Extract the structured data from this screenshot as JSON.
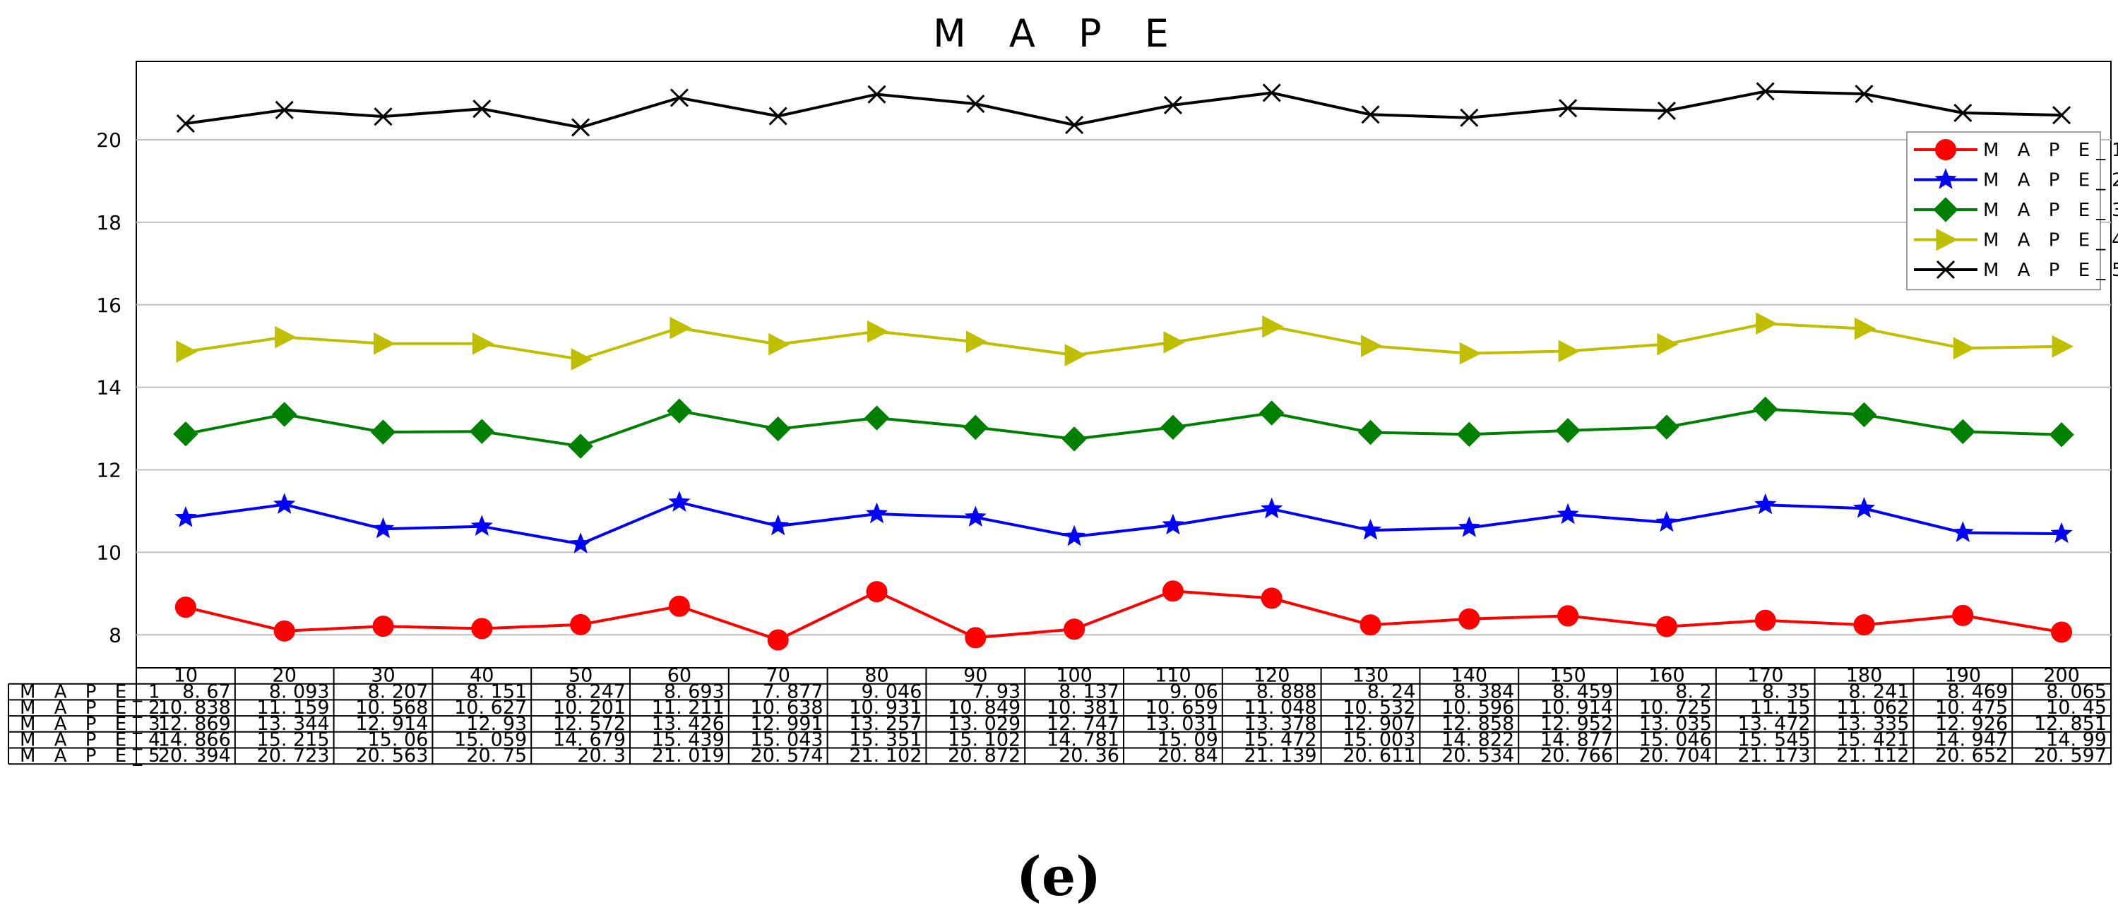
{
  "chart_data": {
    "type": "line",
    "title": "M A P E",
    "caption": "(e)",
    "xlabel": "",
    "ylabel": "",
    "categories": [
      "10",
      "20",
      "30",
      "40",
      "50",
      "60",
      "70",
      "80",
      "90",
      "100",
      "110",
      "120",
      "130",
      "140",
      "150",
      "160",
      "170",
      "180",
      "190",
      "200"
    ],
    "ylim": [
      7.2,
      21.9
    ],
    "yticks": [
      8,
      10,
      12,
      14,
      16,
      18,
      20
    ],
    "grid": true,
    "legend_position": "top-right",
    "series": [
      {
        "name": "M A P E_1",
        "color": "#ff0000",
        "marker": "circle",
        "values": [
          8.67,
          8.093,
          8.207,
          8.151,
          8.247,
          8.693,
          7.877,
          9.046,
          7.93,
          8.137,
          9.06,
          8.888,
          8.24,
          8.384,
          8.459,
          8.2,
          8.35,
          8.241,
          8.469,
          8.065
        ],
        "labels": [
          "8. 67",
          "8. 093",
          "8. 207",
          "8. 151",
          "8. 247",
          "8. 693",
          "7. 877",
          "9. 046",
          "7. 93",
          "8. 137",
          "9. 06",
          "8. 888",
          "8. 24",
          "8. 384",
          "8. 459",
          "8. 2",
          "8. 35",
          "8. 241",
          "8. 469",
          "8. 065"
        ]
      },
      {
        "name": "M A P E_2",
        "color": "#0000ff",
        "marker": "star",
        "values": [
          10.838,
          11.159,
          10.568,
          10.627,
          10.201,
          11.211,
          10.638,
          10.931,
          10.849,
          10.381,
          10.659,
          11.048,
          10.532,
          10.596,
          10.914,
          10.725,
          11.15,
          11.062,
          10.475,
          10.45
        ],
        "labels": [
          "10. 838",
          "11. 159",
          "10. 568",
          "10. 627",
          "10. 201",
          "11. 211",
          "10. 638",
          "10. 931",
          "10. 849",
          "10. 381",
          "10. 659",
          "11. 048",
          "10. 532",
          "10. 596",
          "10. 914",
          "10. 725",
          "11. 15",
          "11. 062",
          "10. 475",
          "10. 45"
        ]
      },
      {
        "name": "M A P E_3",
        "color": "#008000",
        "marker": "diamond",
        "values": [
          12.869,
          13.344,
          12.914,
          12.93,
          12.572,
          13.426,
          12.991,
          13.257,
          13.029,
          12.747,
          13.031,
          13.378,
          12.907,
          12.858,
          12.952,
          13.035,
          13.472,
          13.335,
          12.926,
          12.851
        ],
        "labels": [
          "12. 869",
          "13. 344",
          "12. 914",
          "12. 93",
          "12. 572",
          "13. 426",
          "12. 991",
          "13. 257",
          "13. 029",
          "12. 747",
          "13. 031",
          "13. 378",
          "12. 907",
          "12. 858",
          "12. 952",
          "13. 035",
          "13. 472",
          "13. 335",
          "12. 926",
          "12. 851"
        ]
      },
      {
        "name": "M A P E_4",
        "color": "#bfbf00",
        "marker": "triangle-right",
        "values": [
          14.866,
          15.215,
          15.06,
          15.059,
          14.679,
          15.439,
          15.043,
          15.351,
          15.102,
          14.781,
          15.09,
          15.472,
          15.003,
          14.822,
          14.877,
          15.046,
          15.545,
          15.421,
          14.947,
          14.99
        ],
        "labels": [
          "14. 866",
          "15. 215",
          "15. 06",
          "15. 059",
          "14. 679",
          "15. 439",
          "15. 043",
          "15. 351",
          "15. 102",
          "14. 781",
          "15. 09",
          "15. 472",
          "15. 003",
          "14. 822",
          "14. 877",
          "15. 046",
          "15. 545",
          "15. 421",
          "14. 947",
          "14. 99"
        ]
      },
      {
        "name": "M A P E_5",
        "color": "#000000",
        "marker": "x",
        "values": [
          20.394,
          20.723,
          20.563,
          20.75,
          20.3,
          21.019,
          20.574,
          21.102,
          20.872,
          20.36,
          20.84,
          21.139,
          20.611,
          20.534,
          20.766,
          20.704,
          21.173,
          21.112,
          20.652,
          20.597
        ],
        "labels": [
          "20. 394",
          "20. 723",
          "20. 563",
          "20. 75",
          "20. 3",
          "21. 019",
          "20. 574",
          "21. 102",
          "20. 872",
          "20. 36",
          "20. 84",
          "21. 139",
          "20. 611",
          "20. 534",
          "20. 766",
          "20. 704",
          "21. 173",
          "21. 112",
          "20. 652",
          "20. 597"
        ]
      }
    ]
  }
}
